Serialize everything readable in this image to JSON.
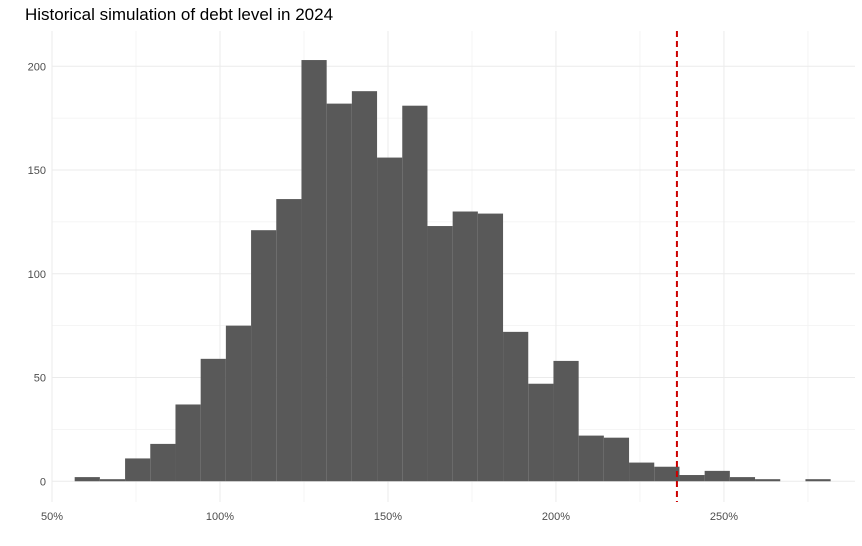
{
  "chart_data": {
    "type": "bar",
    "title": "Historical simulation of debt level in 2024",
    "xlabel": "",
    "ylabel": "",
    "bin_width": 7.5,
    "bins": [
      {
        "x": 60.5,
        "count": 2
      },
      {
        "x": 68.0,
        "count": 1
      },
      {
        "x": 75.5,
        "count": 11
      },
      {
        "x": 83.0,
        "count": 18
      },
      {
        "x": 90.5,
        "count": 37
      },
      {
        "x": 98.0,
        "count": 59
      },
      {
        "x": 105.5,
        "count": 75
      },
      {
        "x": 113.0,
        "count": 121
      },
      {
        "x": 120.5,
        "count": 136
      },
      {
        "x": 128.0,
        "count": 203
      },
      {
        "x": 135.5,
        "count": 182
      },
      {
        "x": 143.0,
        "count": 188
      },
      {
        "x": 150.5,
        "count": 156
      },
      {
        "x": 158.0,
        "count": 181
      },
      {
        "x": 165.5,
        "count": 123
      },
      {
        "x": 173.0,
        "count": 130
      },
      {
        "x": 180.5,
        "count": 129
      },
      {
        "x": 188.0,
        "count": 72
      },
      {
        "x": 195.5,
        "count": 47
      },
      {
        "x": 203.0,
        "count": 58
      },
      {
        "x": 210.5,
        "count": 22
      },
      {
        "x": 218.0,
        "count": 21
      },
      {
        "x": 225.5,
        "count": 9
      },
      {
        "x": 233.0,
        "count": 7
      },
      {
        "x": 240.5,
        "count": 3
      },
      {
        "x": 248.0,
        "count": 5
      },
      {
        "x": 255.5,
        "count": 2
      },
      {
        "x": 263.0,
        "count": 1
      },
      {
        "x": 270.5,
        "count": 0
      },
      {
        "x": 278.0,
        "count": 1
      }
    ],
    "reference_line": {
      "x": 236.0,
      "color": "#cc0000",
      "style": "dashed"
    },
    "xlim": [
      50,
      289
    ],
    "ylim": [
      -10,
      217
    ],
    "x_ticks": [
      {
        "value": 50,
        "label": "50%"
      },
      {
        "value": 100,
        "label": "100%"
      },
      {
        "value": 150,
        "label": "150%"
      },
      {
        "value": 200,
        "label": "200%"
      },
      {
        "value": 250,
        "label": "250%"
      }
    ],
    "y_ticks": [
      {
        "value": 0,
        "label": "0"
      },
      {
        "value": 50,
        "label": "50"
      },
      {
        "value": 100,
        "label": "100"
      },
      {
        "value": 150,
        "label": "150"
      },
      {
        "value": 200,
        "label": "200"
      }
    ],
    "grid": true,
    "bar_color": "#595959",
    "grid_color": "#ebebeb"
  }
}
